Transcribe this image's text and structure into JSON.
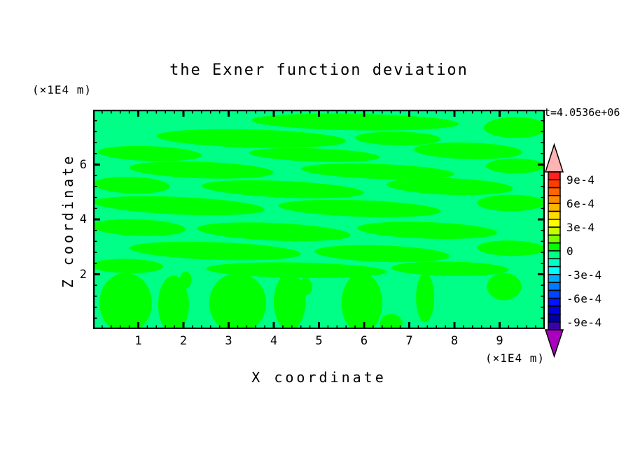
{
  "chart_data": {
    "type": "filled_contour",
    "title": "the Exner function deviation",
    "time_annotation": "t=4.0536e+06",
    "xlabel": "X coordinate",
    "ylabel": "Z coordinate",
    "x_unit_label": "(×1E4 m)",
    "y_unit_label": "(×1E4 m)",
    "x_range": [
      0,
      10
    ],
    "z_range": [
      0,
      8
    ],
    "x_major_ticks": [
      1,
      2,
      3,
      4,
      5,
      6,
      7,
      8,
      9
    ],
    "x_minor_step": 0.2,
    "z_major_ticks": [
      2,
      4,
      6
    ],
    "z_minor_step": 0.4,
    "grid": false,
    "contour_interval": 0.0001,
    "colorbar": {
      "position": "right",
      "value_top": 0.001,
      "value_bottom": -0.001,
      "segment_interval": 0.0001,
      "labels": [
        "9e-4",
        "6e-4",
        "3e-4",
        "0",
        "-3e-4",
        "-6e-4",
        "-9e-4"
      ],
      "label_boundaries": [
        1,
        4,
        7,
        10,
        13,
        16,
        19
      ],
      "segment_colors_top_to_bottom": [
        "#FF2020",
        "#FF3C00",
        "#FF6400",
        "#FF8C00",
        "#FFB400",
        "#FFDC00",
        "#FFFF00",
        "#C8FF00",
        "#78FF00",
        "#00FF00",
        "#00FF87",
        "#00FFC8",
        "#00FFFF",
        "#00AAFF",
        "#0078FF",
        "#0046FF",
        "#0014FF",
        "#0000DC",
        "#0000A0",
        "#3C00AA"
      ],
      "over_arrow_color": "#FFB4B4",
      "under_arrow_color": "#AA00BE"
    },
    "field": {
      "negative_band_color": "#00FF87",
      "positive_band_color": "#00FF00",
      "positive_streaks": [
        {
          "cx": 5.8,
          "cz": 7.55,
          "rx": 2.3,
          "rz": 0.3,
          "tilt": 1
        },
        {
          "cx": 9.35,
          "cz": 7.35,
          "rx": 0.7,
          "rz": 0.38,
          "tilt": 0
        },
        {
          "cx": 3.5,
          "cz": 6.95,
          "rx": 2.1,
          "rz": 0.33,
          "tilt": 1.5
        },
        {
          "cx": 6.75,
          "cz": 6.95,
          "rx": 0.95,
          "rz": 0.25,
          "tilt": 1
        },
        {
          "cx": 1.25,
          "cz": 6.4,
          "rx": 1.15,
          "rz": 0.27,
          "tilt": 2
        },
        {
          "cx": 4.9,
          "cz": 6.35,
          "rx": 1.45,
          "rz": 0.24,
          "tilt": 2
        },
        {
          "cx": 8.3,
          "cz": 6.5,
          "rx": 1.2,
          "rz": 0.3,
          "tilt": 1.5
        },
        {
          "cx": 2.4,
          "cz": 5.8,
          "rx": 1.6,
          "rz": 0.3,
          "tilt": 2
        },
        {
          "cx": 6.3,
          "cz": 5.75,
          "rx": 1.7,
          "rz": 0.27,
          "tilt": 2
        },
        {
          "cx": 9.35,
          "cz": 5.95,
          "rx": 0.65,
          "rz": 0.27,
          "tilt": 0
        },
        {
          "cx": 0.85,
          "cz": 5.25,
          "rx": 0.85,
          "rz": 0.3,
          "tilt": 2
        },
        {
          "cx": 4.2,
          "cz": 5.1,
          "rx": 1.8,
          "rz": 0.3,
          "tilt": 2.5
        },
        {
          "cx": 7.9,
          "cz": 5.2,
          "rx": 1.4,
          "rz": 0.3,
          "tilt": 2
        },
        {
          "cx": 1.9,
          "cz": 4.5,
          "rx": 1.9,
          "rz": 0.32,
          "tilt": 2.5
        },
        {
          "cx": 5.9,
          "cz": 4.4,
          "rx": 1.8,
          "rz": 0.3,
          "tilt": 2
        },
        {
          "cx": 9.25,
          "cz": 4.6,
          "rx": 0.75,
          "rz": 0.3,
          "tilt": 0
        },
        {
          "cx": 1.0,
          "cz": 3.7,
          "rx": 1.05,
          "rz": 0.3,
          "tilt": 2
        },
        {
          "cx": 4.0,
          "cz": 3.55,
          "rx": 1.7,
          "rz": 0.32,
          "tilt": 2.5
        },
        {
          "cx": 7.4,
          "cz": 3.6,
          "rx": 1.55,
          "rz": 0.3,
          "tilt": 2
        },
        {
          "cx": 2.7,
          "cz": 2.85,
          "rx": 1.9,
          "rz": 0.32,
          "tilt": 2
        },
        {
          "cx": 6.4,
          "cz": 2.75,
          "rx": 1.5,
          "rz": 0.3,
          "tilt": 2
        },
        {
          "cx": 9.25,
          "cz": 2.95,
          "rx": 0.75,
          "rz": 0.28,
          "tilt": 1
        },
        {
          "cx": 0.75,
          "cz": 2.3,
          "rx": 0.8,
          "rz": 0.26,
          "tilt": 1
        },
        {
          "cx": 4.5,
          "cz": 2.15,
          "rx": 2.0,
          "rz": 0.28,
          "tilt": 1
        },
        {
          "cx": 7.9,
          "cz": 2.2,
          "rx": 1.3,
          "rz": 0.26,
          "tilt": 1
        }
      ],
      "bottom_cells": [
        {
          "cx": 0.72,
          "cz": 0.95,
          "rx": 0.58,
          "rz": 1.1
        },
        {
          "cx": 1.78,
          "cz": 0.9,
          "rx": 0.34,
          "rz": 1.05
        },
        {
          "cx": 2.05,
          "cz": 1.8,
          "rx": 0.13,
          "rz": 0.3
        },
        {
          "cx": 3.2,
          "cz": 0.95,
          "rx": 0.63,
          "rz": 1.1
        },
        {
          "cx": 4.35,
          "cz": 1.0,
          "rx": 0.35,
          "rz": 1.05
        },
        {
          "cx": 4.7,
          "cz": 1.55,
          "rx": 0.15,
          "rz": 0.32
        },
        {
          "cx": 5.95,
          "cz": 0.95,
          "rx": 0.45,
          "rz": 1.1
        },
        {
          "cx": 6.6,
          "cz": 0.2,
          "rx": 0.25,
          "rz": 0.35
        },
        {
          "cx": 7.35,
          "cz": 1.15,
          "rx": 0.2,
          "rz": 0.9
        },
        {
          "cx": 9.1,
          "cz": 1.55,
          "rx": 0.38,
          "rz": 0.5
        }
      ]
    }
  }
}
